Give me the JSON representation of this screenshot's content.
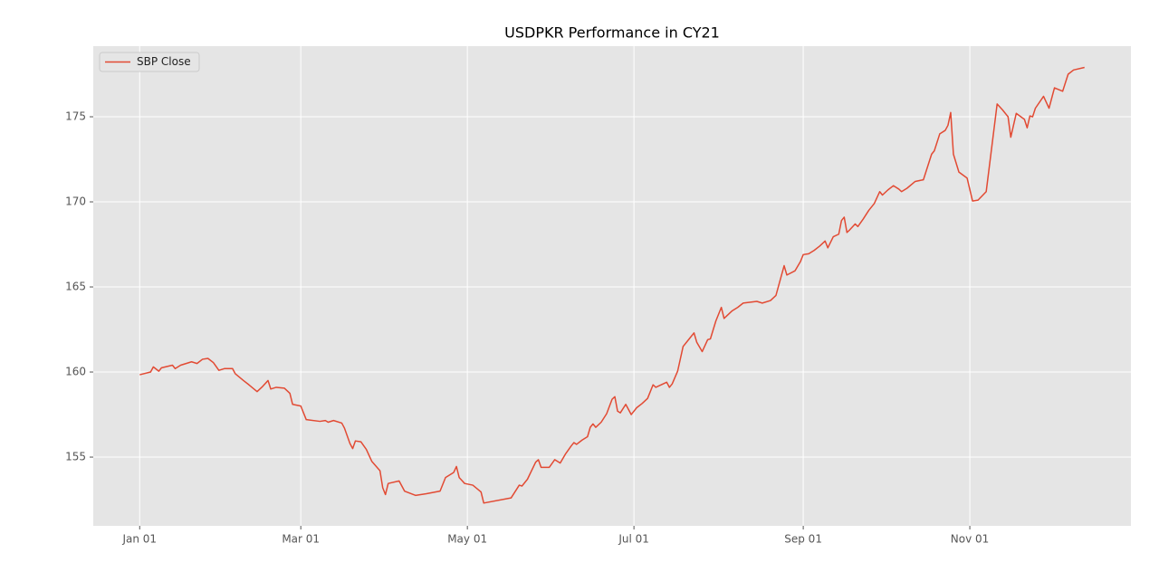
{
  "chart_data": {
    "type": "line",
    "title": "USDPKR Performance in CY21",
    "x": [
      "2021-01-01",
      "2021-01-05",
      "2021-01-06",
      "2021-01-08",
      "2021-01-09",
      "2021-01-13",
      "2021-01-14",
      "2021-01-16",
      "2021-01-20",
      "2021-01-22",
      "2021-01-24",
      "2021-01-26",
      "2021-01-28",
      "2021-01-30",
      "2021-02-01",
      "2021-02-04",
      "2021-02-05",
      "2021-02-08",
      "2021-02-10",
      "2021-02-13",
      "2021-02-15",
      "2021-02-17",
      "2021-02-18",
      "2021-02-20",
      "2021-02-23",
      "2021-02-25",
      "2021-02-26",
      "2021-03-01",
      "2021-03-03",
      "2021-03-08",
      "2021-03-10",
      "2021-03-11",
      "2021-03-13",
      "2021-03-16",
      "2021-03-17",
      "2021-03-19",
      "2021-03-20",
      "2021-03-21",
      "2021-03-23",
      "2021-03-25",
      "2021-03-27",
      "2021-03-30",
      "2021-03-31",
      "2021-04-01",
      "2021-04-02",
      "2021-04-06",
      "2021-04-08",
      "2021-04-12",
      "2021-04-16",
      "2021-04-21",
      "2021-04-23",
      "2021-04-26",
      "2021-04-27",
      "2021-04-28",
      "2021-04-30",
      "2021-05-03",
      "2021-05-06",
      "2021-05-07",
      "2021-05-17",
      "2021-05-20",
      "2021-05-21",
      "2021-05-23",
      "2021-05-26",
      "2021-05-27",
      "2021-05-28",
      "2021-05-31",
      "2021-06-02",
      "2021-06-04",
      "2021-06-06",
      "2021-06-08",
      "2021-06-09",
      "2021-06-10",
      "2021-06-12",
      "2021-06-14",
      "2021-06-15",
      "2021-06-16",
      "2021-06-17",
      "2021-06-19",
      "2021-06-21",
      "2021-06-23",
      "2021-06-24",
      "2021-06-25",
      "2021-06-26",
      "2021-06-28",
      "2021-06-30",
      "2021-07-02",
      "2021-07-04",
      "2021-07-06",
      "2021-07-08",
      "2021-07-09",
      "2021-07-13",
      "2021-07-14",
      "2021-07-15",
      "2021-07-17",
      "2021-07-19",
      "2021-07-23",
      "2021-07-24",
      "2021-07-26",
      "2021-07-28",
      "2021-07-29",
      "2021-07-31",
      "2021-08-02",
      "2021-08-03",
      "2021-08-06",
      "2021-08-08",
      "2021-08-10",
      "2021-08-15",
      "2021-08-17",
      "2021-08-20",
      "2021-08-22",
      "2021-08-25",
      "2021-08-26",
      "2021-08-29",
      "2021-08-31",
      "2021-09-01",
      "2021-09-03",
      "2021-09-05",
      "2021-09-07",
      "2021-09-09",
      "2021-09-10",
      "2021-09-12",
      "2021-09-14",
      "2021-09-15",
      "2021-09-16",
      "2021-09-17",
      "2021-09-18",
      "2021-09-20",
      "2021-09-21",
      "2021-09-23",
      "2021-09-25",
      "2021-09-27",
      "2021-09-29",
      "2021-09-30",
      "2021-10-02",
      "2021-10-04",
      "2021-10-06",
      "2021-10-07",
      "2021-10-09",
      "2021-10-12",
      "2021-10-15",
      "2021-10-18",
      "2021-10-19",
      "2021-10-21",
      "2021-10-23",
      "2021-10-24",
      "2021-10-25",
      "2021-10-26",
      "2021-10-28",
      "2021-10-31",
      "2021-11-02",
      "2021-11-04",
      "2021-11-07",
      "2021-11-11",
      "2021-11-13",
      "2021-11-15",
      "2021-11-16",
      "2021-11-18",
      "2021-11-21",
      "2021-11-22",
      "2021-11-23",
      "2021-11-24",
      "2021-11-25",
      "2021-11-28",
      "2021-11-30",
      "2021-12-02",
      "2021-12-05",
      "2021-12-07",
      "2021-12-09",
      "2021-12-13"
    ],
    "series": [
      {
        "name": "SBP Close",
        "color": "#e24a33",
        "values": [
          159.84,
          160.0,
          160.3,
          160.05,
          160.25,
          160.4,
          160.2,
          160.4,
          160.6,
          160.5,
          160.75,
          160.8,
          160.55,
          160.1,
          160.2,
          160.2,
          159.9,
          159.5,
          159.25,
          158.85,
          159.15,
          159.5,
          159.0,
          159.1,
          159.05,
          158.75,
          158.1,
          158.0,
          157.2,
          157.1,
          157.15,
          157.05,
          157.15,
          157.0,
          156.7,
          155.8,
          155.5,
          155.95,
          155.9,
          155.45,
          154.75,
          154.2,
          153.2,
          152.8,
          153.45,
          153.6,
          153.0,
          152.75,
          152.85,
          153.0,
          153.8,
          154.1,
          154.45,
          153.8,
          153.45,
          153.35,
          152.95,
          152.3,
          152.6,
          153.35,
          153.3,
          153.7,
          154.7,
          154.85,
          154.4,
          154.4,
          154.85,
          154.65,
          155.2,
          155.65,
          155.85,
          155.75,
          156.0,
          156.2,
          156.75,
          156.95,
          156.75,
          157.05,
          157.55,
          158.4,
          158.55,
          157.7,
          157.6,
          158.1,
          157.5,
          157.9,
          158.15,
          158.45,
          159.25,
          159.1,
          159.4,
          159.1,
          159.3,
          160.05,
          161.5,
          162.3,
          161.75,
          161.2,
          161.9,
          161.95,
          163.0,
          163.8,
          163.15,
          163.6,
          163.8,
          164.05,
          164.15,
          164.05,
          164.2,
          164.5,
          166.25,
          165.7,
          165.95,
          166.5,
          166.9,
          166.95,
          167.15,
          167.4,
          167.7,
          167.3,
          167.95,
          168.1,
          168.9,
          169.1,
          168.2,
          168.35,
          168.7,
          168.55,
          169.0,
          169.5,
          169.9,
          170.6,
          170.4,
          170.7,
          170.95,
          170.75,
          170.6,
          170.8,
          171.2,
          171.3,
          172.8,
          173.0,
          174.0,
          174.2,
          174.5,
          175.25,
          172.8,
          171.75,
          171.4,
          170.05,
          170.1,
          170.6,
          175.75,
          175.4,
          175.0,
          173.8,
          175.2,
          174.85,
          174.35,
          175.05,
          175.0,
          175.5,
          176.2,
          175.5,
          176.7,
          176.5,
          177.5,
          177.75,
          177.9
        ]
      }
    ],
    "xlim": [
      "2020-12-15",
      "2021-12-30"
    ],
    "xticks": [
      {
        "value": "2021-01-01",
        "label": "Jan 01"
      },
      {
        "value": "2021-03-01",
        "label": "Mar 01"
      },
      {
        "value": "2021-05-01",
        "label": "May 01"
      },
      {
        "value": "2021-07-01",
        "label": "Jul 01"
      },
      {
        "value": "2021-09-01",
        "label": "Sep 01"
      },
      {
        "value": "2021-11-01",
        "label": "Nov 01"
      }
    ],
    "ylim": [
      150.96,
      179.15
    ],
    "yticks": [
      155,
      160,
      165,
      170,
      175
    ],
    "grid": true,
    "legend": "upper left"
  }
}
